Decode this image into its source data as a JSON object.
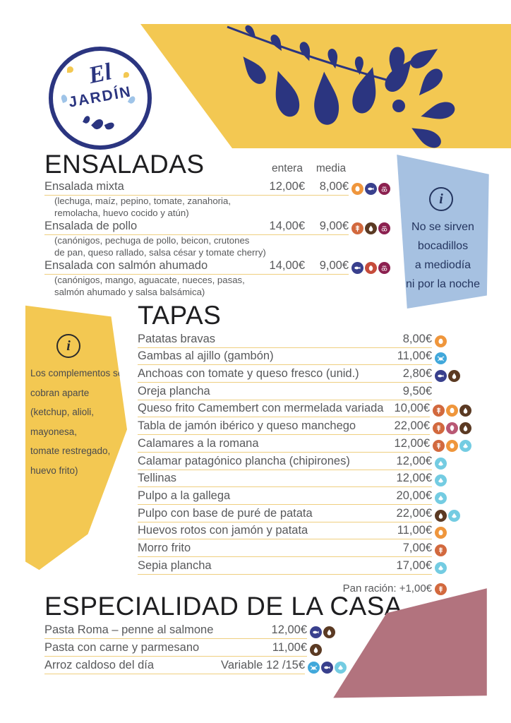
{
  "logo": {
    "line1": "El",
    "line2": "Jardín"
  },
  "colors": {
    "banner_yellow": "#F3C852",
    "navy": "#2B3580",
    "info_blue": "#A6C1E1",
    "mauve": "#B2737E",
    "underline": "#EFCF7F",
    "text_gray": "#58595b"
  },
  "allergen_colors": {
    "gluten": "#D2693E",
    "egg": "#EF963C",
    "crustaceans": "#41A8DB",
    "fish": "#39408D",
    "milk": "#5B3A23",
    "nuts": "#C64C3B",
    "peanut": "#B95874",
    "sulphites": "#8C2150",
    "molluscs": "#74CCE2"
  },
  "info_boxes": {
    "blue": {
      "lines": [
        "No se sirven",
        "bocadillos",
        "a mediodía",
        "ni por la noche"
      ]
    },
    "yellow": {
      "lines": [
        "Los complementos se",
        "cobran aparte",
        "(ketchup, alioli,",
        "mayonesa,",
        "tomate restregado,",
        "huevo frito)"
      ]
    }
  },
  "sections": {
    "ensaladas": {
      "title": "ENSALADAS",
      "columns": [
        "entera",
        "media"
      ],
      "items": [
        {
          "name": "Ensalada mixta",
          "price_entera": "12,00€",
          "price_media": "8,00€",
          "allergens": [
            "egg",
            "fish",
            "sulphites"
          ],
          "desc": [
            "(lechuga, maíz, pepino, tomate, zanahoria,",
            "remolacha, huevo cocido y atún)"
          ]
        },
        {
          "name": "Ensalada de pollo",
          "price_entera": "14,00€",
          "price_media": "9,00€",
          "allergens": [
            "gluten",
            "milk",
            "sulphites"
          ],
          "desc": [
            "(canónigos, pechuga de pollo, beicon, crutones",
            "de pan, queso rallado, salsa césar y tomate cherry)"
          ]
        },
        {
          "name": "Ensalada con salmón ahumado",
          "price_entera": "14,00€",
          "price_media": "9,00€",
          "allergens": [
            "fish",
            "nuts",
            "sulphites"
          ],
          "desc": [
            "(canónigos, mango, aguacate, nueces, pasas,",
            "salmón ahumado y salsa balsámica)"
          ]
        }
      ]
    },
    "tapas": {
      "title": "TAPAS",
      "items": [
        {
          "name": "Patatas bravas",
          "price": "8,00€",
          "allergens": [
            "egg"
          ]
        },
        {
          "name": "Gambas al ajillo (gambón)",
          "price": "11,00€",
          "allergens": [
            "crustaceans"
          ]
        },
        {
          "name": "Anchoas con tomate y queso fresco (unid.)",
          "price": "2,80€",
          "allergens": [
            "fish",
            "milk"
          ]
        },
        {
          "name": "Oreja plancha",
          "price": "9,50€",
          "allergens": []
        },
        {
          "name": "Queso frito Camembert con mermelada variada",
          "price": "10,00€",
          "allergens": [
            "gluten",
            "egg",
            "milk"
          ]
        },
        {
          "name": "Tabla de jamón ibérico y queso manchego",
          "price": "22,00€",
          "allergens": [
            "gluten",
            "peanut",
            "milk"
          ]
        },
        {
          "name": "Calamares a la romana",
          "price": "12,00€",
          "allergens": [
            "gluten",
            "egg",
            "molluscs"
          ]
        },
        {
          "name": "Calamar patagónico plancha (chipirones)",
          "price": "12,00€",
          "allergens": [
            "molluscs"
          ]
        },
        {
          "name": "Tellinas",
          "price": "12,00€",
          "allergens": [
            "molluscs"
          ]
        },
        {
          "name": "Pulpo a la gallega",
          "price": "20,00€",
          "allergens": [
            "molluscs"
          ]
        },
        {
          "name": "Pulpo con base de puré de patata",
          "price": "22,00€",
          "allergens": [
            "milk",
            "molluscs"
          ]
        },
        {
          "name": "Huevos rotos con jamón y patata",
          "price": "11,00€",
          "allergens": [
            "egg"
          ]
        },
        {
          "name": "Morro frito",
          "price": "7,00€",
          "allergens": [
            "gluten"
          ]
        },
        {
          "name": "Sepia plancha",
          "price": "17,00€",
          "allergens": [
            "molluscs"
          ]
        }
      ],
      "pan_note": "Pan ración: +1,00€",
      "pan_allergens": [
        "gluten"
      ]
    },
    "especialidad": {
      "title": "ESPECIALIDAD DE LA CASA",
      "items": [
        {
          "name": "Pasta Roma – penne al salmone",
          "price": "12,00€",
          "allergens": [
            "fish",
            "milk"
          ]
        },
        {
          "name": "Pasta con carne y parmesano",
          "price": "11,00€",
          "allergens": [
            "milk"
          ]
        },
        {
          "name": "Arroz caldoso del día",
          "price": "Variable 12 /15€",
          "allergens": [
            "crustaceans",
            "fish",
            "molluscs"
          ]
        }
      ]
    }
  }
}
